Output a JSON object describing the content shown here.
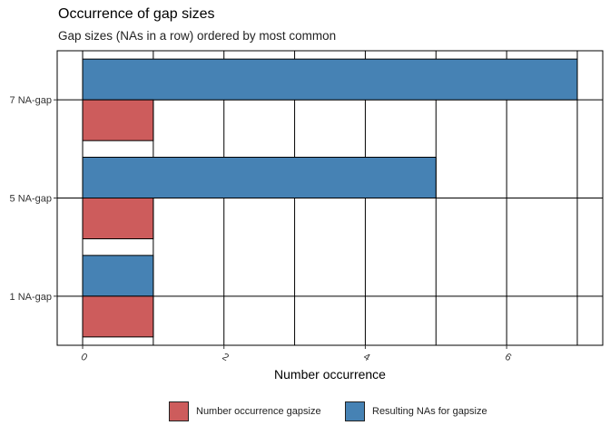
{
  "chart_data": {
    "type": "bar",
    "orientation": "horizontal",
    "title": "Occurrence of gap sizes",
    "subtitle": "Gap sizes (NAs in a row) ordered by most common",
    "xlabel": "Number occurrence",
    "ylabel": "",
    "categories": [
      "7 NA-gap",
      "5 NA-gap",
      "1 NA-gap"
    ],
    "series": [
      {
        "name": "Number occurrence gapsize",
        "values": [
          1,
          1,
          1
        ],
        "color": "#CD5C5C"
      },
      {
        "name": "Resulting NAs for gapsize",
        "values": [
          7,
          5,
          1
        ],
        "color": "#4682B4"
      }
    ],
    "x_ticks": [
      0,
      2,
      4,
      6
    ],
    "x_tick_labels": [
      "0",
      "2",
      "4",
      "6"
    ],
    "xlim": [
      -0.36,
      7.36
    ],
    "grid": true,
    "legend_position": "bottom"
  }
}
